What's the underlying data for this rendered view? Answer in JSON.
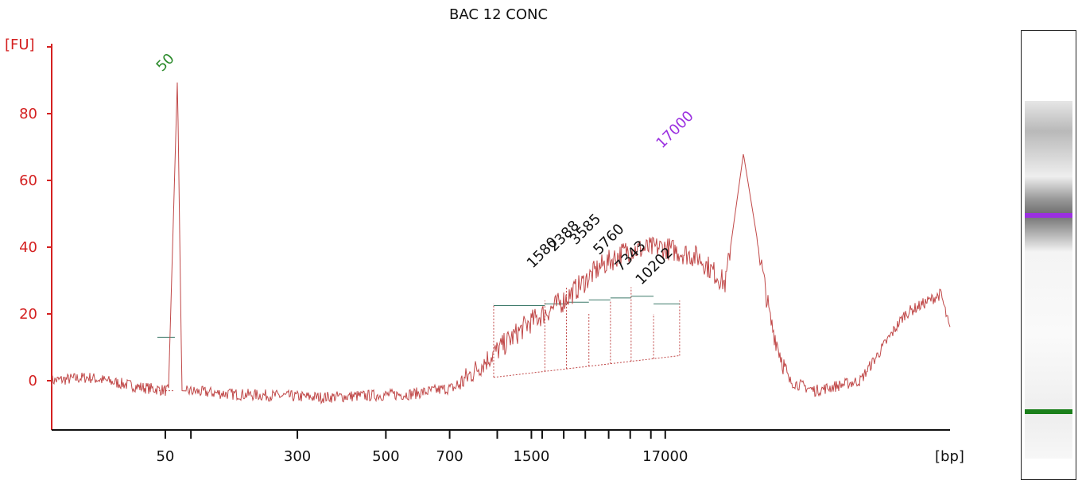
{
  "chart_data": {
    "type": "line",
    "title": "BAC 12 CONC",
    "ylabel": "[FU]",
    "xlabel": "[bp]",
    "ylim": [
      -15,
      103
    ],
    "yticks": [
      0,
      20,
      40,
      60,
      80
    ],
    "xtick_labels": [
      "50",
      "300",
      "500",
      "700",
      "1500",
      "17000"
    ],
    "colors": {
      "trace": "#c04848",
      "axis": "#d42020",
      "lower_marker": "#2a8a2a",
      "upper_marker": "#9b30e0",
      "peak_label": "#111111",
      "baseline": "#3d7a6a"
    },
    "markers": [
      {
        "name": "lower marker",
        "label": "50",
        "size_bp": 50,
        "fu": 91
      },
      {
        "name": "upper marker",
        "label": "17000",
        "size_bp": 17000,
        "fu": 68
      }
    ],
    "peaks": [
      {
        "label": "1580",
        "size_bp": 1580,
        "fu": 34
      },
      {
        "label": "2388",
        "size_bp": 2388,
        "fu": 39
      },
      {
        "label": "3585",
        "size_bp": 3585,
        "fu": 41
      },
      {
        "label": "5760",
        "size_bp": 5760,
        "fu": 38
      },
      {
        "label": "7343",
        "size_bp": 7343,
        "fu": 33
      },
      {
        "label": "10202",
        "size_bp": 10202,
        "fu": 29
      }
    ],
    "trace_keypoints": [
      [
        0,
        0
      ],
      [
        0.04,
        1
      ],
      [
        0.1,
        -2
      ],
      [
        0.13,
        -3
      ],
      [
        0.14,
        91
      ],
      [
        0.145,
        -3
      ],
      [
        0.2,
        -4
      ],
      [
        0.3,
        -5
      ],
      [
        0.4,
        -4
      ],
      [
        0.45,
        -2
      ],
      [
        0.5,
        10
      ],
      [
        0.53,
        17
      ],
      [
        0.57,
        24
      ],
      [
        0.61,
        34
      ],
      [
        0.64,
        39
      ],
      [
        0.68,
        40
      ],
      [
        0.72,
        37
      ],
      [
        0.75,
        29
      ],
      [
        0.77,
        68
      ],
      [
        0.8,
        18
      ],
      [
        0.82,
        0
      ],
      [
        0.85,
        -3
      ],
      [
        0.9,
        0
      ],
      [
        0.95,
        20
      ],
      [
        0.99,
        26
      ],
      [
        1.0,
        15
      ]
    ]
  },
  "gel": {
    "lower_band_label": "lower marker",
    "upper_band_label": "upper marker"
  }
}
